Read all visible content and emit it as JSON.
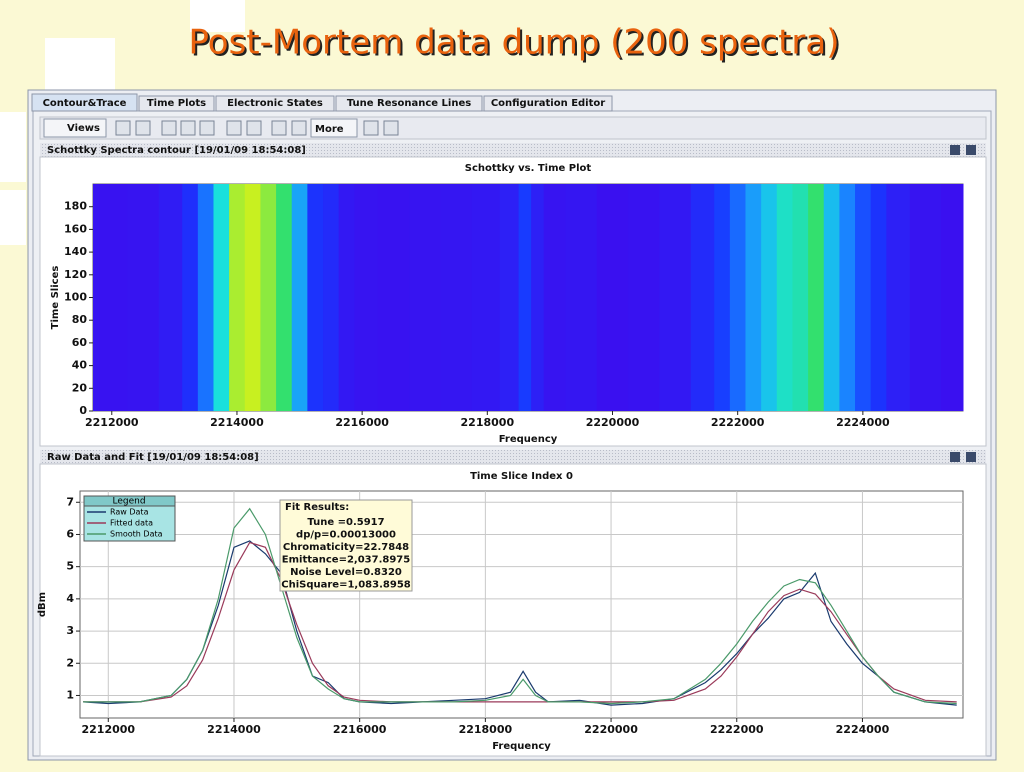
{
  "title": "Post-Mortem data dump (200 spectra)",
  "tabs": [
    "Contour&Trace",
    "Time Plots",
    "Electronic States",
    "Tune Resonance Lines",
    "Configuration Editor"
  ],
  "toolbar": [
    "Views",
    "More"
  ],
  "panels": [
    "Schottky Spectra contour  [19/01/09 18:54:08]",
    "Raw Data and Fit  [19/01/09 18:54:08]"
  ],
  "chart_data": [
    {
      "type": "heatmap",
      "title": "Schottky vs. Time Plot",
      "xlabel": "Frequency",
      "ylabel": "Time Slices",
      "xlim": [
        2211700,
        2225600
      ],
      "xticks": [
        2212000,
        2214000,
        2216000,
        2218000,
        2220000,
        2222000,
        2224000
      ],
      "ylim": [
        0,
        200
      ],
      "yticks": [
        0,
        20,
        40,
        60,
        80,
        100,
        120,
        140,
        160,
        180
      ],
      "colorscale": [
        "#3a10f0",
        "#1838ff",
        "#1a90ff",
        "#18e0e0",
        "#30e070",
        "#c8f020"
      ],
      "x": [
        2211600,
        2212000,
        2212500,
        2213000,
        2213250,
        2213500,
        2213750,
        2214000,
        2214250,
        2214500,
        2214750,
        2215000,
        2215250,
        2215500,
        2215750,
        2216000,
        2216500,
        2217000,
        2217500,
        2218000,
        2218400,
        2218600,
        2218800,
        2219000,
        2219500,
        2220000,
        2220500,
        2221000,
        2221500,
        2221750,
        2222000,
        2222250,
        2222500,
        2222750,
        2223000,
        2223250,
        2223500,
        2223750,
        2224000,
        2224250,
        2224500,
        2225000,
        2225500
      ],
      "values": [
        0.8,
        0.75,
        0.8,
        1.0,
        1.5,
        2.4,
        3.8,
        5.6,
        5.8,
        5.4,
        4.8,
        3.0,
        1.6,
        1.4,
        0.9,
        0.8,
        0.75,
        0.8,
        0.85,
        0.9,
        1.1,
        1.75,
        1.1,
        0.8,
        0.85,
        0.7,
        0.75,
        0.9,
        1.4,
        1.8,
        2.3,
        2.9,
        3.4,
        4.0,
        4.2,
        4.8,
        3.3,
        2.6,
        2.0,
        1.6,
        1.1,
        0.8,
        0.7
      ]
    },
    {
      "type": "line",
      "title": "Time Slice Index 0",
      "xlabel": "Frequency",
      "ylabel": "dBm",
      "xlim": [
        2211550,
        2225600
      ],
      "xticks": [
        2212000,
        2214000,
        2216000,
        2218000,
        2220000,
        2222000,
        2224000
      ],
      "ylim": [
        0.3,
        7.35
      ],
      "yticks": [
        1,
        2,
        3,
        4,
        5,
        6,
        7
      ],
      "grid": true,
      "legend": "upper left",
      "legend_title": "Legend",
      "x": [
        2211600,
        2212000,
        2212500,
        2213000,
        2213250,
        2213500,
        2213750,
        2214000,
        2214250,
        2214500,
        2214750,
        2215000,
        2215250,
        2215500,
        2215750,
        2216000,
        2216500,
        2217000,
        2217500,
        2218000,
        2218400,
        2218600,
        2218800,
        2219000,
        2219500,
        2220000,
        2220500,
        2221000,
        2221500,
        2221750,
        2222000,
        2222250,
        2222500,
        2222750,
        2223000,
        2223250,
        2223500,
        2223750,
        2224000,
        2224250,
        2224500,
        2225000,
        2225500
      ],
      "series": [
        {
          "name": "Raw Data",
          "color": "#1a3a6e",
          "values": [
            0.8,
            0.75,
            0.8,
            1.0,
            1.5,
            2.4,
            3.8,
            5.6,
            5.8,
            5.4,
            4.8,
            3.0,
            1.6,
            1.4,
            0.9,
            0.8,
            0.75,
            0.8,
            0.85,
            0.9,
            1.1,
            1.75,
            1.1,
            0.8,
            0.85,
            0.7,
            0.75,
            0.9,
            1.4,
            1.8,
            2.3,
            2.9,
            3.4,
            4.0,
            4.2,
            4.8,
            3.3,
            2.6,
            2.0,
            1.6,
            1.1,
            0.8,
            0.7
          ]
        },
        {
          "name": "Fitted data",
          "color": "#9a3a5a",
          "values": [
            0.8,
            0.8,
            0.8,
            0.95,
            1.3,
            2.1,
            3.4,
            4.9,
            5.75,
            5.6,
            4.6,
            3.2,
            2.0,
            1.3,
            0.95,
            0.85,
            0.8,
            0.8,
            0.8,
            0.8,
            0.8,
            0.8,
            0.8,
            0.8,
            0.8,
            0.8,
            0.8,
            0.85,
            1.2,
            1.6,
            2.2,
            2.9,
            3.6,
            4.1,
            4.3,
            4.15,
            3.6,
            2.9,
            2.2,
            1.6,
            1.2,
            0.85,
            0.8
          ]
        },
        {
          "name": "Smooth Data",
          "color": "#4a9a6a",
          "values": [
            0.8,
            0.8,
            0.8,
            1.0,
            1.5,
            2.4,
            4.0,
            6.2,
            6.8,
            6.0,
            4.4,
            2.8,
            1.6,
            1.2,
            0.9,
            0.8,
            0.8,
            0.8,
            0.8,
            0.85,
            1.0,
            1.5,
            1.0,
            0.8,
            0.8,
            0.75,
            0.8,
            0.9,
            1.5,
            2.0,
            2.6,
            3.3,
            3.9,
            4.4,
            4.6,
            4.5,
            3.8,
            3.0,
            2.2,
            1.6,
            1.1,
            0.8,
            0.75
          ]
        }
      ],
      "annotation": {
        "title": "Fit Results:",
        "lines": [
          "Tune =0.5917",
          "dp/p=0.00013000",
          "Chromaticity=22.7848",
          "Emittance=2,037.8975",
          "Noise Level=0.8320",
          "ChiSquare=1,083.8958"
        ]
      }
    }
  ]
}
